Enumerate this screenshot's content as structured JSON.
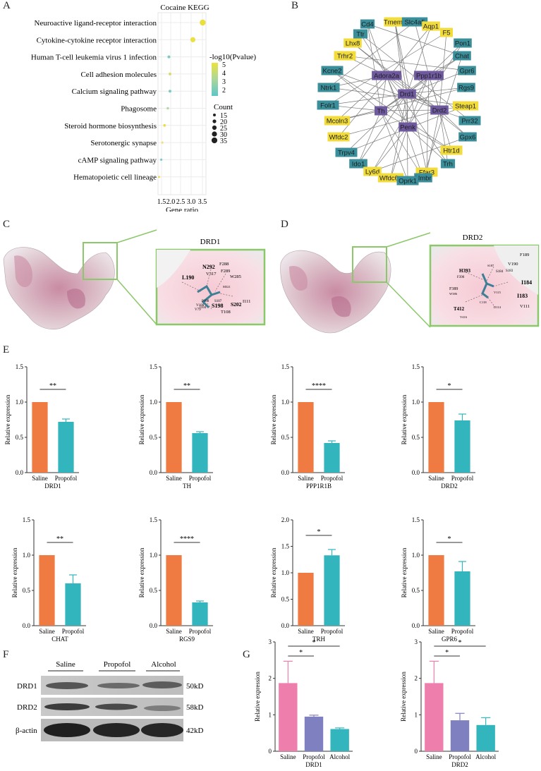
{
  "panels": {
    "A": "A",
    "B": "B",
    "C": "C",
    "D": "D",
    "E": "E",
    "F": "F",
    "G": "G"
  },
  "kegg": {
    "title": "Cocaine KEGG",
    "xlabel": "Gene ratio",
    "color_legend_title": "-log10(Pvalue)",
    "color_ticks": [
      "5",
      "4",
      "3",
      "2"
    ],
    "size_legend_title": "Count",
    "size_ticks": [
      "15",
      "20",
      "25",
      "30",
      "35"
    ],
    "x_tick_labels": [
      "1.5",
      "2.0",
      "2.5",
      "3.0",
      "3.5"
    ]
  },
  "network": {
    "nodes": [
      {
        "label": "Cd4",
        "color": "teal"
      },
      {
        "label": "Tmem7",
        "color": "yellow"
      },
      {
        "label": "Slc4a5",
        "color": "teal"
      },
      {
        "label": "Aqp1",
        "color": "yellow"
      },
      {
        "label": "F5",
        "color": "yellow"
      },
      {
        "label": "Ttr",
        "color": "teal"
      },
      {
        "label": "Lhx8",
        "color": "yellow"
      },
      {
        "label": "Pon1",
        "color": "teal"
      },
      {
        "label": "Trhr2",
        "color": "yellow"
      },
      {
        "label": "Chat",
        "color": "teal"
      },
      {
        "label": "Kcne2",
        "color": "teal"
      },
      {
        "label": "Gpr6",
        "color": "teal"
      },
      {
        "label": "Adora2a",
        "color": "purple"
      },
      {
        "label": "Ppp1r1b",
        "color": "purple"
      },
      {
        "label": "Ntrk1",
        "color": "teal"
      },
      {
        "label": "Rgs9",
        "color": "teal"
      },
      {
        "label": "Drd1",
        "color": "purple"
      },
      {
        "label": "Folr1",
        "color": "teal"
      },
      {
        "label": "Th",
        "color": "purple"
      },
      {
        "label": "Drd2",
        "color": "purple"
      },
      {
        "label": "Steap1",
        "color": "yellow"
      },
      {
        "label": "Prr32",
        "color": "teal"
      },
      {
        "label": "Mcoln3",
        "color": "yellow"
      },
      {
        "label": "Penk",
        "color": "purple"
      },
      {
        "label": "Gpx6",
        "color": "teal"
      },
      {
        "label": "Wfdc2",
        "color": "yellow"
      },
      {
        "label": "Htr1d",
        "color": "yellow"
      },
      {
        "label": "Trpv4",
        "color": "teal"
      },
      {
        "label": "Ido1",
        "color": "teal"
      },
      {
        "label": "Trh",
        "color": "teal"
      },
      {
        "label": "Ly6d",
        "color": "yellow"
      },
      {
        "label": "Ffar3",
        "color": "yellow"
      },
      {
        "label": "Wfdc6a",
        "color": "yellow"
      },
      {
        "label": "Nmbr",
        "color": "teal"
      },
      {
        "label": "Oprk1",
        "color": "teal"
      }
    ]
  },
  "docking": {
    "drd1": {
      "title": "DRD1",
      "residues": [
        "N292",
        "F288",
        "F289",
        "V317",
        "W285",
        "M321",
        "L190",
        "S107",
        "S198",
        "S202",
        "V100",
        "P108",
        "I104",
        "T108",
        "I111",
        "V79"
      ]
    },
    "drd2": {
      "title": "DRD2",
      "residues": [
        "F189",
        "V190",
        "H393",
        "S184",
        "S183",
        "F390",
        "S187",
        "I184",
        "F389",
        "W386",
        "I183",
        "V115",
        "T412",
        "D114",
        "C118",
        "V111",
        "Y416"
      ]
    }
  },
  "chart_data": [
    {
      "type": "bar",
      "gene": "DRD1",
      "categories": [
        "Saline",
        "Propofol"
      ],
      "values": [
        1.0,
        0.72
      ],
      "errors": [
        0,
        0.04
      ],
      "ylim": [
        0,
        1.5
      ],
      "yticks": [
        "0.0",
        "0.5",
        "1.0",
        "1.5"
      ],
      "ylabel": "Relative expression",
      "sig": "**"
    },
    {
      "type": "bar",
      "gene": "TH",
      "categories": [
        "Saline",
        "Propofol"
      ],
      "values": [
        1.0,
        0.56
      ],
      "errors": [
        0,
        0.02
      ],
      "ylim": [
        0,
        1.5
      ],
      "yticks": [
        "0.0",
        "0.5",
        "1.0",
        "1.5"
      ],
      "ylabel": "Relative expression",
      "sig": "**"
    },
    {
      "type": "bar",
      "gene": "PPP1R1B",
      "categories": [
        "Saline",
        "Propofol"
      ],
      "values": [
        1.0,
        0.42
      ],
      "errors": [
        0,
        0.03
      ],
      "ylim": [
        0,
        1.5
      ],
      "yticks": [
        "0.0",
        "0.5",
        "1.0",
        "1.5"
      ],
      "ylabel": "Relative expression",
      "sig": "****"
    },
    {
      "type": "bar",
      "gene": "DRD2",
      "categories": [
        "Saline",
        "Propofol"
      ],
      "values": [
        1.0,
        0.74
      ],
      "errors": [
        0,
        0.09
      ],
      "ylim": [
        0,
        1.5
      ],
      "yticks": [
        "0.0",
        "0.5",
        "1.0",
        "1.5"
      ],
      "ylabel": "Relative expression",
      "sig": "*"
    },
    {
      "type": "bar",
      "gene": "CHAT",
      "categories": [
        "Saline",
        "Propofol"
      ],
      "values": [
        1.0,
        0.6
      ],
      "errors": [
        0,
        0.12
      ],
      "ylim": [
        0,
        1.5
      ],
      "yticks": [
        "0.0",
        "0.5",
        "1.0",
        "1.5"
      ],
      "ylabel": "Relative expression",
      "sig": "**"
    },
    {
      "type": "bar",
      "gene": "RGS9",
      "categories": [
        "Saline",
        "Propofol"
      ],
      "values": [
        1.0,
        0.33
      ],
      "errors": [
        0,
        0.02
      ],
      "ylim": [
        0,
        1.5
      ],
      "yticks": [
        "0.0",
        "0.5",
        "1.0",
        "1.5"
      ],
      "ylabel": "Relative expression",
      "sig": "****"
    },
    {
      "type": "bar",
      "gene": "TRH",
      "categories": [
        "Saline",
        "Propofol"
      ],
      "values": [
        1.0,
        1.33
      ],
      "errors": [
        0,
        0.11
      ],
      "ylim": [
        0,
        2.0
      ],
      "yticks": [
        "0.0",
        "0.5",
        "1.0",
        "1.5",
        "2.0"
      ],
      "ylabel": "Relative expression",
      "sig": "*"
    },
    {
      "type": "bar",
      "gene": "GPR6",
      "categories": [
        "Saline",
        "Propofol"
      ],
      "values": [
        1.0,
        0.77
      ],
      "errors": [
        0,
        0.14
      ],
      "ylim": [
        0,
        1.5
      ],
      "yticks": [
        "0.0",
        "0.5",
        "1.0",
        "1.5"
      ],
      "ylabel": "Relative expression",
      "sig": "*"
    },
    {
      "type": "bar",
      "gene": "DRD1",
      "categories": [
        "Saline",
        "Propofol",
        "Alcohol"
      ],
      "values": [
        1.87,
        0.95,
        0.61
      ],
      "errors": [
        0.6,
        0.04,
        0.03
      ],
      "ylim": [
        0,
        3
      ],
      "yticks": [
        "0",
        "1",
        "2",
        "3"
      ],
      "ylabel": "Relative expression",
      "sig": [
        "*",
        "*"
      ]
    },
    {
      "type": "bar",
      "gene": "DRD2",
      "categories": [
        "Saline",
        "Propofol",
        "Alcohol"
      ],
      "values": [
        1.87,
        0.85,
        0.72
      ],
      "errors": [
        0.6,
        0.19,
        0.2
      ],
      "ylim": [
        0,
        3
      ],
      "yticks": [
        "0",
        "1",
        "2",
        "3"
      ],
      "ylabel": "Relative expression",
      "sig": [
        "*",
        "*"
      ]
    }
  ],
  "western": {
    "lanes": [
      "Saline",
      "Propofol",
      "Alcohol"
    ],
    "bands": [
      {
        "label": "DRD1",
        "size": "50kD"
      },
      {
        "label": "DRD2",
        "size": "58kD"
      },
      {
        "label": "β-actin",
        "size": "42kD"
      }
    ]
  },
  "colors": {
    "saline": "#ef7a42",
    "propofol": "#33b5bd",
    "g_saline": "#ee7fac",
    "g_propofol": "#7f80c0",
    "g_alcohol": "#33b5bd",
    "teal": "#3b8f9a",
    "yellow": "#f1dc3c",
    "purple": "#6f5a9f"
  }
}
